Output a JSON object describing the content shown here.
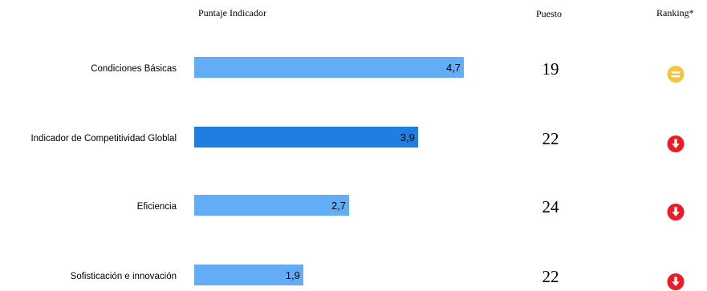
{
  "headers": {
    "score": "Puntaje Indicador",
    "position": "Puesto",
    "ranking": "Ranking*"
  },
  "chart_data": {
    "type": "bar",
    "orientation": "horizontal",
    "categories": [
      "Condiciones Básicas",
      "Indicador de Competitividad Globlal",
      "Eficiencia",
      "Sofisticación e innovación"
    ],
    "values": [
      4.7,
      3.9,
      2.7,
      1.9
    ],
    "value_labels": [
      "4,7",
      "3,9",
      "2,7",
      "1,9"
    ],
    "xlim": [
      0,
      7
    ],
    "grid": false,
    "bar_colors": [
      "#63adf7",
      "#1e7fe0",
      "#63adf7",
      "#63adf7"
    ]
  },
  "puestos": [
    "19",
    "22",
    "24",
    "22"
  ],
  "ranking_icons": [
    "equal-icon",
    "arrow-down-icon",
    "arrow-down-icon",
    "arrow-down-icon"
  ],
  "colors": {
    "equal": "#f4c542",
    "down": "#ea1c24"
  }
}
